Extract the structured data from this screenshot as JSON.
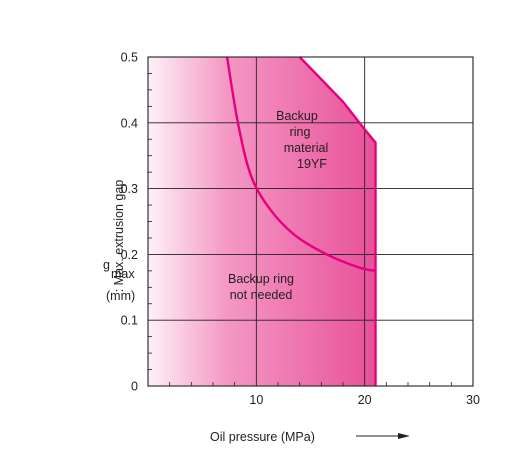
{
  "chart_data": {
    "type": "area",
    "title": "",
    "xlabel": "Oil pressure",
    "xlabel_unit": "(MPa)",
    "ylabel_symbol": "g",
    "ylabel_subscript": "max",
    "ylabel_text": ": Max. extrusion gap",
    "ylabel_unit": "(mm)",
    "xlim": [
      0,
      30
    ],
    "ylim": [
      0,
      0.5
    ],
    "x_ticks": [
      {
        "value": 10,
        "label": "10"
      },
      {
        "value": 20,
        "label": "20"
      },
      {
        "value": 30,
        "label": "30"
      }
    ],
    "y_ticks": [
      {
        "value": 0,
        "label": "0"
      },
      {
        "value": 0.1,
        "label": "0.1"
      },
      {
        "value": 0.2,
        "label": "0.2"
      },
      {
        "value": 0.3,
        "label": "0.3"
      },
      {
        "value": 0.4,
        "label": "0.4"
      },
      {
        "value": 0.5,
        "label": "0.5"
      }
    ],
    "grid": true,
    "series": [
      {
        "name": "Backup ring not needed",
        "x": [
          7.3,
          8.3,
          9.5,
          11.2,
          13.5,
          16.5,
          19.5,
          21.0
        ],
        "y": [
          0.5,
          0.4,
          0.32,
          0.27,
          0.23,
          0.2,
          0.18,
          0.175
        ]
      },
      {
        "name": "Backup ring material 19YF",
        "x": [
          14.0,
          16.0,
          18.0,
          20.0,
          21.0,
          21.0
        ],
        "y": [
          0.5,
          0.466,
          0.432,
          0.39,
          0.37,
          0.0
        ]
      }
    ],
    "annotations": [
      {
        "lines": [
          "Backup",
          "ring",
          "material",
          "19YF"
        ]
      },
      {
        "lines": [
          "Backup ring",
          "not needed"
        ]
      }
    ],
    "colors": {
      "curve": "#e6007e",
      "fill_light": "#fdf1f7",
      "fill_mid": "#f497c3",
      "fill_dark": "#e8519a",
      "axis": "#231f20",
      "grid": "#231f20"
    }
  }
}
